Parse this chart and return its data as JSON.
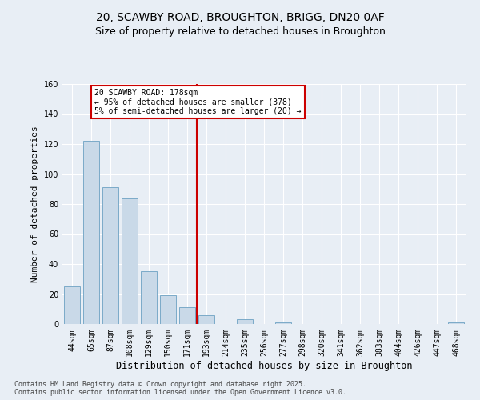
{
  "title1": "20, SCAWBY ROAD, BROUGHTON, BRIGG, DN20 0AF",
  "title2": "Size of property relative to detached houses in Broughton",
  "xlabel": "Distribution of detached houses by size in Broughton",
  "ylabel": "Number of detached properties",
  "footer": "Contains HM Land Registry data © Crown copyright and database right 2025.\nContains public sector information licensed under the Open Government Licence v3.0.",
  "categories": [
    "44sqm",
    "65sqm",
    "87sqm",
    "108sqm",
    "129sqm",
    "150sqm",
    "171sqm",
    "193sqm",
    "214sqm",
    "235sqm",
    "256sqm",
    "277sqm",
    "298sqm",
    "320sqm",
    "341sqm",
    "362sqm",
    "383sqm",
    "404sqm",
    "426sqm",
    "447sqm",
    "468sqm"
  ],
  "values": [
    25,
    122,
    91,
    84,
    35,
    19,
    11,
    6,
    0,
    3,
    0,
    1,
    0,
    0,
    0,
    0,
    0,
    0,
    0,
    0,
    1
  ],
  "bar_color": "#c9d9e8",
  "bar_edge_color": "#7baac8",
  "vline_x": 6.5,
  "vline_color": "#cc0000",
  "annotation_text": "20 SCAWBY ROAD: 178sqm\n← 95% of detached houses are smaller (378)\n5% of semi-detached houses are larger (20) →",
  "annotation_box_color": "#cc0000",
  "bg_color": "#e8eef5",
  "plot_bg_color": "#e8eef5",
  "ylim": [
    0,
    160
  ],
  "yticks": [
    0,
    20,
    40,
    60,
    80,
    100,
    120,
    140,
    160
  ],
  "grid_color": "#ffffff",
  "title1_fontsize": 10,
  "title2_fontsize": 9,
  "xlabel_fontsize": 8.5,
  "ylabel_fontsize": 8,
  "tick_fontsize": 7,
  "annotation_fontsize": 7,
  "footer_fontsize": 6
}
